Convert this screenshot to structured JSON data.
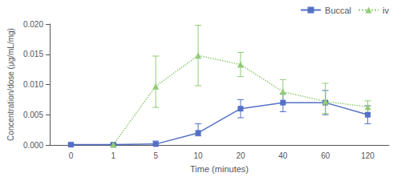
{
  "chart_data": {
    "type": "line",
    "xlabel": "Time (minutes)",
    "ylabel": "Concentration/dose (μg/mL/mg)",
    "categories": [
      "0",
      "1",
      "5",
      "10",
      "20",
      "40",
      "60",
      "120"
    ],
    "series": [
      {
        "name": "Buccal",
        "type": "line",
        "marker": "square",
        "line_style": "solid",
        "values": [
          5e-05,
          5e-05,
          0.00015,
          0.002,
          0.006,
          0.007,
          0.007,
          0.005
        ],
        "err_low": [
          5e-05,
          5e-05,
          5e-05,
          0.0005,
          0.0015,
          0.0015,
          0.002,
          0.0015
        ],
        "err_high": [
          0.00015,
          0.00015,
          0.0005,
          0.0015,
          0.0015,
          0.0015,
          0.002,
          0.0015
        ]
      },
      {
        "name": "iv",
        "type": "line",
        "marker": "triangle",
        "line_style": "dotted",
        "values": [
          null,
          5e-05,
          0.0097,
          0.0148,
          0.0133,
          0.0088,
          0.0072,
          0.0063
        ],
        "err_low": [
          null,
          5e-05,
          0.0035,
          0.005,
          0.002,
          0.002,
          0.002,
          0.001
        ],
        "err_high": [
          null,
          5e-05,
          0.005,
          0.005,
          0.002,
          0.002,
          0.003,
          0.001
        ]
      }
    ],
    "ylim": [
      0.0,
      0.02
    ],
    "yticks": [
      {
        "value": 0,
        "label": "0.000"
      },
      0.005,
      {
        "value": 0.01,
        "label": "0.010"
      },
      0.015,
      {
        "value": 0.02,
        "label": "0.020"
      }
    ],
    "grid": false,
    "legend": "upper right"
  }
}
